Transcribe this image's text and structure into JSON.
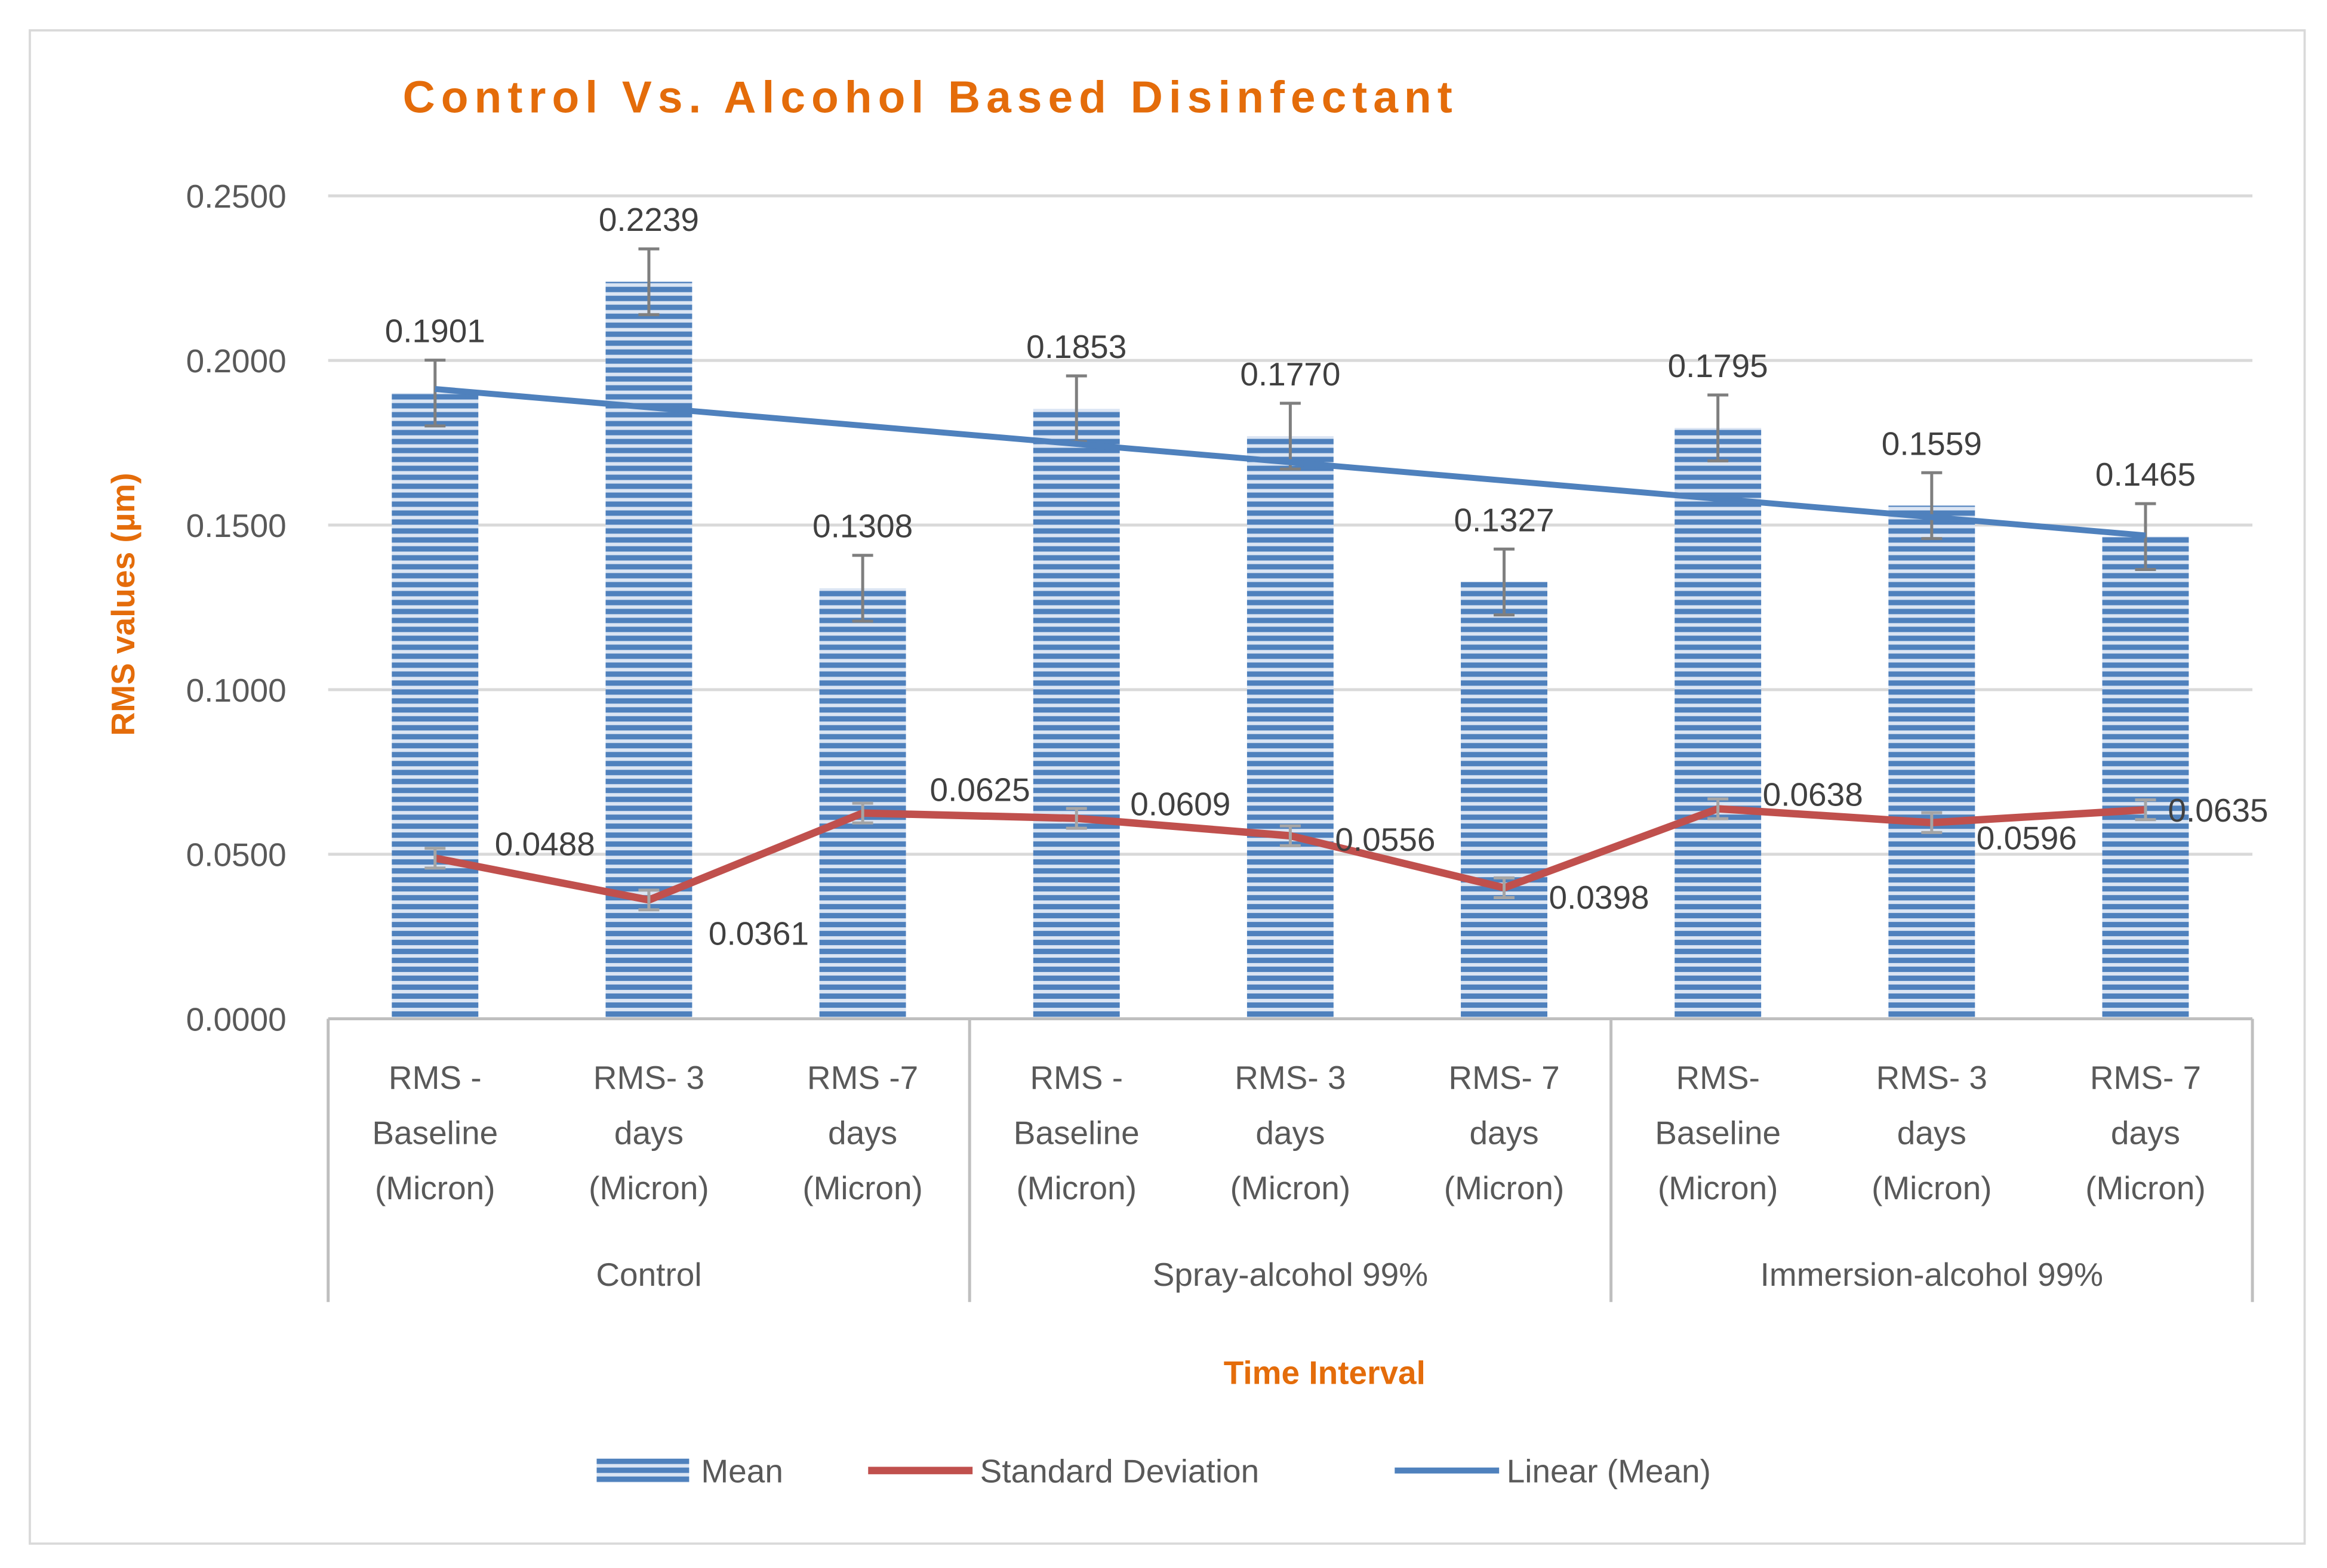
{
  "chart_data": {
    "type": "bar",
    "title": "Control Vs. Alcohol Based Disinfectant",
    "xlabel": "Time Interval",
    "ylabel": "RMS values (µm)",
    "ylim": [
      0,
      0.25
    ],
    "yticks": [
      "0.0000",
      "0.0500",
      "0.1000",
      "0.1500",
      "0.2000",
      "0.2500"
    ],
    "grid": true,
    "legend_position": "bottom",
    "categories": [
      [
        "RMS -",
        "Baseline",
        "(Micron)"
      ],
      [
        "RMS- 3",
        "days",
        "(Micron)"
      ],
      [
        "RMS -7",
        "days",
        "(Micron)"
      ],
      [
        "RMS -",
        "Baseline",
        "(Micron)"
      ],
      [
        "RMS- 3",
        "days",
        "(Micron)"
      ],
      [
        "RMS- 7",
        "days",
        "(Micron)"
      ],
      [
        "RMS-",
        "Baseline",
        "(Micron)"
      ],
      [
        "RMS- 3",
        "days",
        "(Micron)"
      ],
      [
        "RMS- 7",
        "days",
        "(Micron)"
      ]
    ],
    "groups": [
      "Control",
      "Spray-alcohol 99%",
      "Immersion-alcohol 99%"
    ],
    "series": [
      {
        "name": "Mean",
        "kind": "bar",
        "color": "#4F81BD",
        "values": [
          0.1901,
          0.2239,
          0.1308,
          0.1853,
          0.177,
          0.1327,
          0.1795,
          0.1559,
          0.1465
        ],
        "labels": [
          "0.1901",
          "0.2239",
          "0.1308",
          "0.1853",
          "0.1770",
          "0.1327",
          "0.1795",
          "0.1559",
          "0.1465"
        ],
        "error": 0.01
      },
      {
        "name": "Standard Deviation",
        "kind": "line",
        "color": "#C0504D",
        "values": [
          0.0488,
          0.0361,
          0.0625,
          0.0609,
          0.0556,
          0.0398,
          0.0638,
          0.0596,
          0.0635
        ],
        "labels": [
          "0.0488",
          "0.0361",
          "0.0625",
          "0.0609",
          "0.0556",
          "0.0398",
          "0.0638",
          "0.0596",
          "0.0635"
        ],
        "error": 0.003
      },
      {
        "name": "Linear (Mean)",
        "kind": "trendline",
        "color": "#4F81BD"
      }
    ]
  }
}
